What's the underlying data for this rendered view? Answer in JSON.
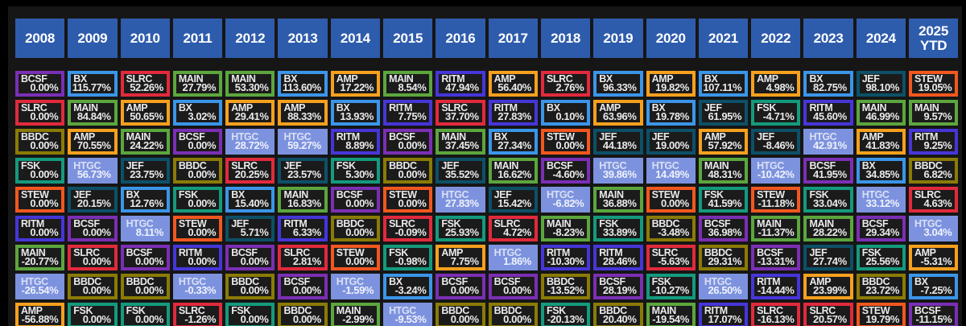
{
  "chart_data": {
    "type": "table",
    "description": "Periodic-table style chart of annual total returns ranked best-to-worst per year",
    "highlighted_ticker": "HTGC",
    "ticker_colors": {
      "BCSF": "#7b2fb4",
      "BX": "#3b95e8",
      "SLRC": "#e12a3c",
      "MAIN": "#5ca63e",
      "AMP": "#f6a01e",
      "BBDC": "#8a7b06",
      "FSK": "#149a7d",
      "JEF": "#0d5068",
      "STEW": "#f2571f",
      "RITM": "#4636d8",
      "HTGC": "#7d92de"
    },
    "columns": [
      {
        "year": "2008",
        "cells": [
          [
            "BCSF",
            "0.00%"
          ],
          [
            "SLRC",
            "0.00%"
          ],
          [
            "BBDC",
            "0.00%"
          ],
          [
            "FSK",
            "0.00%"
          ],
          [
            "STEW",
            "0.00%"
          ],
          [
            "RITM",
            "0.00%"
          ],
          [
            "MAIN",
            "-20.77%"
          ],
          [
            "HTGC",
            "-26.54%"
          ],
          [
            "AMP",
            "-56.88%"
          ]
        ]
      },
      {
        "year": "2009",
        "cells": [
          [
            "BX",
            "115.77%"
          ],
          [
            "MAIN",
            "84.84%"
          ],
          [
            "AMP",
            "70.55%"
          ],
          [
            "HTGC",
            "56.73%"
          ],
          [
            "JEF",
            "20.15%"
          ],
          [
            "BCSF",
            "0.00%"
          ],
          [
            "SLRC",
            "0.00%"
          ],
          [
            "BBDC",
            "0.00%"
          ],
          [
            "FSK",
            "0.00%"
          ]
        ]
      },
      {
        "year": "2010",
        "cells": [
          [
            "SLRC",
            "52.26%"
          ],
          [
            "AMP",
            "50.65%"
          ],
          [
            "MAIN",
            "24.22%"
          ],
          [
            "JEF",
            "23.75%"
          ],
          [
            "BX",
            "12.76%"
          ],
          [
            "HTGC",
            "8.11%"
          ],
          [
            "BCSF",
            "0.00%"
          ],
          [
            "BBDC",
            "0.00%"
          ],
          [
            "FSK",
            "0.00%"
          ]
        ]
      },
      {
        "year": "2011",
        "cells": [
          [
            "MAIN",
            "27.79%"
          ],
          [
            "BX",
            "3.02%"
          ],
          [
            "BCSF",
            "0.00%"
          ],
          [
            "BBDC",
            "0.00%"
          ],
          [
            "FSK",
            "0.00%"
          ],
          [
            "STEW",
            "0.00%"
          ],
          [
            "RITM",
            "0.00%"
          ],
          [
            "HTGC",
            "-0.33%"
          ],
          [
            "SLRC",
            "-1.26%"
          ]
        ]
      },
      {
        "year": "2012",
        "cells": [
          [
            "MAIN",
            "53.30%"
          ],
          [
            "AMP",
            "29.41%"
          ],
          [
            "HTGC",
            "28.72%"
          ],
          [
            "SLRC",
            "20.25%"
          ],
          [
            "BX",
            "15.40%"
          ],
          [
            "JEF",
            "5.71%"
          ],
          [
            "BCSF",
            "0.00%"
          ],
          [
            "BBDC",
            "0.00%"
          ],
          [
            "FSK",
            "0.00%"
          ]
        ]
      },
      {
        "year": "2013",
        "cells": [
          [
            "BX",
            "113.60%"
          ],
          [
            "AMP",
            "88.33%"
          ],
          [
            "HTGC",
            "59.27%"
          ],
          [
            "JEF",
            "23.57%"
          ],
          [
            "MAIN",
            "16.83%"
          ],
          [
            "RITM",
            "6.33%"
          ],
          [
            "SLRC",
            "2.81%"
          ],
          [
            "BCSF",
            "0.00%"
          ],
          [
            "BBDC",
            "0.00%"
          ]
        ]
      },
      {
        "year": "2014",
        "cells": [
          [
            "AMP",
            "17.22%"
          ],
          [
            "BX",
            "13.93%"
          ],
          [
            "RITM",
            "8.89%"
          ],
          [
            "FSK",
            "5.30%"
          ],
          [
            "BCSF",
            "0.00%"
          ],
          [
            "BBDC",
            "0.00%"
          ],
          [
            "STEW",
            "0.00%"
          ],
          [
            "HTGC",
            "-1.59%"
          ],
          [
            "MAIN",
            "-2.99%"
          ]
        ]
      },
      {
        "year": "2015",
        "cells": [
          [
            "MAIN",
            "8.54%"
          ],
          [
            "RITM",
            "7.75%"
          ],
          [
            "BCSF",
            "0.00%"
          ],
          [
            "BBDC",
            "0.00%"
          ],
          [
            "STEW",
            "0.00%"
          ],
          [
            "SLRC",
            "-0.09%"
          ],
          [
            "FSK",
            "-0.98%"
          ],
          [
            "BX",
            "-3.24%"
          ],
          [
            "HTGC",
            "-9.53%"
          ]
        ]
      },
      {
        "year": "2016",
        "cells": [
          [
            "RITM",
            "47.94%"
          ],
          [
            "SLRC",
            "37.70%"
          ],
          [
            "MAIN",
            "37.45%"
          ],
          [
            "JEF",
            "35.52%"
          ],
          [
            "HTGC",
            "27.83%"
          ],
          [
            "FSK",
            "25.93%"
          ],
          [
            "AMP",
            "7.75%"
          ],
          [
            "BCSF",
            "0.00%"
          ],
          [
            "BBDC",
            "0.00%"
          ]
        ]
      },
      {
        "year": "2017",
        "cells": [
          [
            "AMP",
            "56.40%"
          ],
          [
            "RITM",
            "27.83%"
          ],
          [
            "BX",
            "27.34%"
          ],
          [
            "MAIN",
            "16.62%"
          ],
          [
            "JEF",
            "15.42%"
          ],
          [
            "SLRC",
            "4.72%"
          ],
          [
            "HTGC",
            "1.86%"
          ],
          [
            "BCSF",
            "0.00%"
          ],
          [
            "BBDC",
            "0.00%"
          ]
        ]
      },
      {
        "year": "2018",
        "cells": [
          [
            "SLRC",
            "2.76%"
          ],
          [
            "BX",
            "0.10%"
          ],
          [
            "STEW",
            "0.00%"
          ],
          [
            "BCSF",
            "-4.60%"
          ],
          [
            "HTGC",
            "-6.82%"
          ],
          [
            "MAIN",
            "-8.23%"
          ],
          [
            "RITM",
            "-10.30%"
          ],
          [
            "BBDC",
            "-13.52%"
          ],
          [
            "FSK",
            "-20.13%"
          ]
        ]
      },
      {
        "year": "2019",
        "cells": [
          [
            "BX",
            "96.33%"
          ],
          [
            "AMP",
            "63.96%"
          ],
          [
            "JEF",
            "44.18%"
          ],
          [
            "HTGC",
            "39.86%"
          ],
          [
            "MAIN",
            "36.88%"
          ],
          [
            "FSK",
            "33.89%"
          ],
          [
            "RITM",
            "28.46%"
          ],
          [
            "BCSF",
            "28.19%"
          ],
          [
            "BBDC",
            "20.40%"
          ]
        ]
      },
      {
        "year": "2020",
        "cells": [
          [
            "AMP",
            "19.82%"
          ],
          [
            "BX",
            "19.78%"
          ],
          [
            "JEF",
            "19.00%"
          ],
          [
            "HTGC",
            "14.49%"
          ],
          [
            "STEW",
            "0.00%"
          ],
          [
            "BBDC",
            "-3.48%"
          ],
          [
            "SLRC",
            "-5.63%"
          ],
          [
            "FSK",
            "-10.27%"
          ],
          [
            "MAIN",
            "-19.54%"
          ]
        ]
      },
      {
        "year": "2021",
        "cells": [
          [
            "BX",
            "107.11%"
          ],
          [
            "JEF",
            "61.95%"
          ],
          [
            "AMP",
            "57.92%"
          ],
          [
            "MAIN",
            "48.31%"
          ],
          [
            "FSK",
            "41.59%"
          ],
          [
            "BCSF",
            "36.98%"
          ],
          [
            "BBDC",
            "29.31%"
          ],
          [
            "HTGC",
            "26.50%"
          ],
          [
            "RITM",
            "17.07%"
          ]
        ]
      },
      {
        "year": "2022",
        "cells": [
          [
            "AMP",
            "4.98%"
          ],
          [
            "FSK",
            "-4.71%"
          ],
          [
            "JEF",
            "-8.46%"
          ],
          [
            "HTGC",
            "-10.42%"
          ],
          [
            "STEW",
            "-11.18%"
          ],
          [
            "MAIN",
            "-11.37%"
          ],
          [
            "BCSF",
            "-13.31%"
          ],
          [
            "RITM",
            "-14.44%"
          ],
          [
            "SLRC",
            "-16.13%"
          ]
        ]
      },
      {
        "year": "2023",
        "cells": [
          [
            "BX",
            "82.75%"
          ],
          [
            "RITM",
            "45.60%"
          ],
          [
            "HTGC",
            "42.91%"
          ],
          [
            "BCSF",
            "41.95%"
          ],
          [
            "FSK",
            "33.04%"
          ],
          [
            "MAIN",
            "28.22%"
          ],
          [
            "JEF",
            "27.74%"
          ],
          [
            "AMP",
            "23.99%"
          ],
          [
            "SLRC",
            "20.57%"
          ]
        ]
      },
      {
        "year": "2024",
        "cells": [
          [
            "JEF",
            "98.10%"
          ],
          [
            "MAIN",
            "46.99%"
          ],
          [
            "AMP",
            "41.83%"
          ],
          [
            "BX",
            "34.85%"
          ],
          [
            "HTGC",
            "33.12%"
          ],
          [
            "BCSF",
            "29.34%"
          ],
          [
            "FSK",
            "25.56%"
          ],
          [
            "BBDC",
            "23.72%"
          ],
          [
            "STEW",
            "19.79%"
          ]
        ]
      },
      {
        "year": "2025\nYTD",
        "cells": [
          [
            "STEW",
            "19.05%"
          ],
          [
            "MAIN",
            "9.57%"
          ],
          [
            "RITM",
            "9.25%"
          ],
          [
            "BBDC",
            "6.82%"
          ],
          [
            "SLRC",
            "4.63%"
          ],
          [
            "HTGC",
            "3.04%"
          ],
          [
            "AMP",
            "-5.31%"
          ],
          [
            "BX",
            "-7.25%"
          ],
          [
            "BCSF",
            "-11.15%"
          ]
        ]
      }
    ]
  },
  "ui_colors": {
    "page_bg": "#000000",
    "panel_bg": "#161616",
    "header_bg": "#2e5cac",
    "header_text": "#ffffff",
    "cell_bg": "#1b1b1b",
    "cell_text": "#eaeaea",
    "highlight_bg": "#7d92de",
    "highlight_text": "#eef2fc",
    "highlight_ticker_text": "#d9e0f5"
  }
}
